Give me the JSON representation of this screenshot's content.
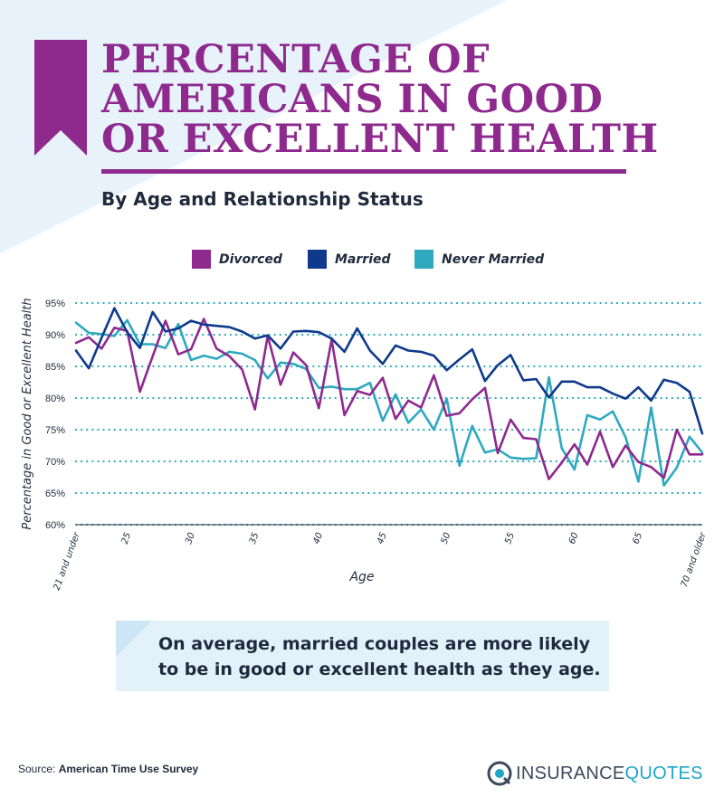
{
  "header": {
    "title": "PERCENTAGE OF AMERICANS IN GOOD OR EXCELLENT HEALTH",
    "subtitle": "By Age and Relationship Status"
  },
  "colors": {
    "accent": "#8e2a8e",
    "divorced": "#8e2a8e",
    "married": "#0f3a8c",
    "never_married": "#2ea9bf",
    "callout_bg": "#e3f1fb",
    "text": "#1f2a3c"
  },
  "chart_data": {
    "type": "line",
    "xlabel": "Age",
    "ylabel": "Percentage in Good or Excellent Health",
    "x": [
      21,
      22,
      23,
      24,
      25,
      26,
      27,
      28,
      29,
      30,
      31,
      32,
      33,
      34,
      35,
      36,
      37,
      38,
      39,
      40,
      41,
      42,
      43,
      44,
      45,
      46,
      47,
      48,
      49,
      50,
      51,
      52,
      53,
      54,
      55,
      56,
      57,
      58,
      59,
      60,
      61,
      62,
      63,
      64,
      65,
      66,
      67,
      68,
      69,
      70
    ],
    "x_tick_labels": [
      {
        "x": 21,
        "label": "21 and under"
      },
      {
        "x": 25,
        "label": "25"
      },
      {
        "x": 30,
        "label": "30"
      },
      {
        "x": 35,
        "label": "35"
      },
      {
        "x": 40,
        "label": "40"
      },
      {
        "x": 45,
        "label": "45"
      },
      {
        "x": 50,
        "label": "50"
      },
      {
        "x": 55,
        "label": "55"
      },
      {
        "x": 60,
        "label": "60"
      },
      {
        "x": 65,
        "label": "65"
      },
      {
        "x": 70,
        "label": "70 and older"
      }
    ],
    "y_ticks": [
      60,
      65,
      70,
      75,
      80,
      85,
      90,
      95
    ],
    "y_tick_labels": [
      "60%",
      "65%",
      "70%",
      "75%",
      "80%",
      "85%",
      "90%",
      "95%"
    ],
    "ylim": [
      60,
      95
    ],
    "grid": "horizontal dotted",
    "legend": "top-center",
    "series": [
      {
        "name": "Divorced",
        "color": "#8e2a8e",
        "values": [
          88.7,
          89.6,
          87.8,
          91.1,
          90.6,
          81.0,
          86.6,
          92.2,
          86.9,
          87.7,
          92.5,
          87.8,
          86.6,
          84.5,
          78.2,
          89.8,
          82.1,
          87.2,
          85.2,
          78.4,
          89.2,
          77.3,
          81.1,
          80.5,
          83.2,
          76.7,
          79.6,
          78.5,
          83.6,
          77.2,
          77.6,
          79.8,
          81.6,
          71.3,
          76.6,
          73.7,
          73.5,
          67.2,
          69.8,
          72.7,
          69.5,
          74.7,
          69.1,
          72.5,
          69.9,
          69.1,
          67.4,
          75.0,
          71.1,
          71.1
        ]
      },
      {
        "name": "Married",
        "color": "#0f3a8c",
        "values": [
          87.5,
          84.7,
          89.5,
          94.2,
          90.4,
          87.9,
          93.6,
          90.5,
          91.0,
          92.2,
          91.6,
          91.4,
          91.2,
          90.5,
          89.4,
          89.9,
          87.8,
          90.5,
          90.6,
          90.4,
          89.4,
          87.3,
          91.0,
          87.5,
          85.4,
          88.3,
          87.5,
          87.3,
          86.7,
          84.4,
          86.1,
          87.7,
          82.7,
          85.2,
          86.8,
          82.8,
          83.0,
          80.1,
          82.6,
          82.6,
          81.7,
          81.7,
          80.7,
          79.9,
          81.7,
          79.6,
          82.9,
          82.4,
          81.0,
          74.4
        ]
      },
      {
        "name": "Never Married",
        "color": "#2ea9bf",
        "values": [
          91.9,
          90.3,
          90.1,
          89.8,
          92.3,
          88.5,
          88.5,
          87.9,
          91.7,
          86.0,
          86.7,
          86.2,
          87.3,
          87.0,
          86.0,
          83.1,
          85.6,
          85.4,
          84.6,
          81.6,
          81.8,
          81.4,
          81.4,
          82.4,
          76.4,
          80.6,
          76.1,
          78.2,
          75.0,
          79.9,
          69.3,
          75.6,
          71.4,
          71.9,
          70.6,
          70.4,
          70.5,
          83.3,
          72.1,
          68.7,
          77.3,
          76.6,
          77.9,
          73.8,
          66.8,
          78.5,
          66.2,
          69.0,
          73.9,
          71.4
        ]
      }
    ]
  },
  "callout": {
    "text": "On average, married couples are more likely to be in good or excellent health as they age."
  },
  "footer": {
    "source_label": "Source:",
    "source_name": "American Time Use Survey",
    "brand_part1": "INSURANCE",
    "brand_part2": "QUOTES"
  }
}
